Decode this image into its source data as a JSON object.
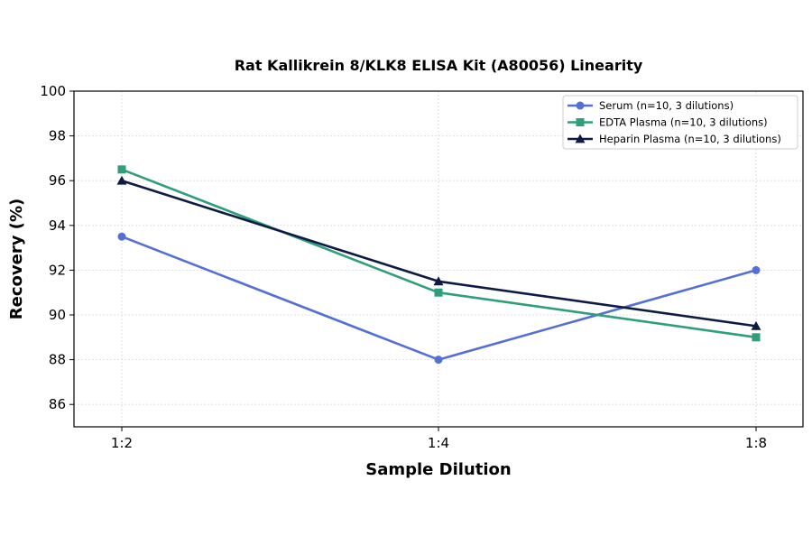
{
  "chart_data": {
    "type": "line",
    "title": "Rat Kallikrein 8/KLK8 ELISA Kit (A80056) Linearity",
    "xlabel": "Sample Dilution",
    "ylabel": "Recovery (%)",
    "categories": [
      "1:2",
      "1:4",
      "1:8"
    ],
    "ylim": [
      85,
      100
    ],
    "yticks": [
      "86",
      "88",
      "90",
      "92",
      "94",
      "96",
      "98",
      "100"
    ],
    "grid": true,
    "legend_position": "top-right",
    "series": [
      {
        "name": "Serum (n=10, 3 dilutions)",
        "values": [
          93.5,
          88,
          92
        ],
        "color": "#5470d6",
        "marker": "circle"
      },
      {
        "name": "EDTA Plasma (n=10, 3 dilutions)",
        "values": [
          96.5,
          91,
          89
        ],
        "color": "#2e9e7b",
        "marker": "square"
      },
      {
        "name": "Heparin Plasma (n=10, 3 dilutions)",
        "values": [
          96,
          91.5,
          89.5
        ],
        "color": "#0d1b45",
        "marker": "triangle"
      }
    ]
  }
}
